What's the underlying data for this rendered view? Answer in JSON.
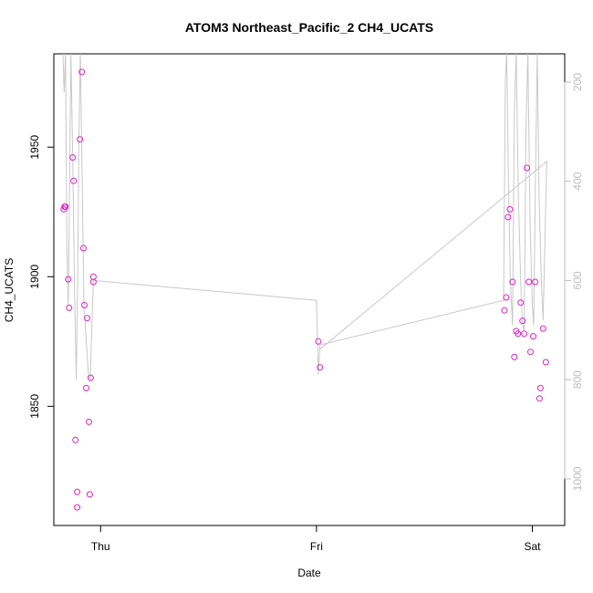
{
  "chart_data": {
    "type": "scatter",
    "title": "ATOM3 Northeast_Pacific_2 CH4_UCATS",
    "xlabel": "Date",
    "ylabel": "CH4_UCATS",
    "x_ticks": [
      {
        "x": 0,
        "label": "Thu"
      },
      {
        "x": 24,
        "label": "Fri"
      },
      {
        "x": 48,
        "label": "Sat"
      }
    ],
    "y_ticks": [
      1850,
      1900,
      1950
    ],
    "y2_ticks": [
      200,
      400,
      600,
      800,
      1000
    ],
    "xlim": [
      -5.2,
      51.6
    ],
    "ylim": [
      1804,
      1986
    ],
    "y2lim": [
      1094,
      143
    ],
    "colors": {
      "points": "#e020c8",
      "line": "#c8c8c8",
      "axis": "#000000",
      "right_axis": "#bdbdbd"
    },
    "points": [
      [
        -4.1,
        1926
      ],
      [
        -4.0,
        1927
      ],
      [
        -3.9,
        1927
      ],
      [
        -3.6,
        1899
      ],
      [
        -3.5,
        1888
      ],
      [
        -3.1,
        1946
      ],
      [
        -3.0,
        1937
      ],
      [
        -2.8,
        1837
      ],
      [
        -2.6,
        1817
      ],
      [
        -2.6,
        1811
      ],
      [
        -2.3,
        1953
      ],
      [
        -2.1,
        1979
      ],
      [
        -1.9,
        1911
      ],
      [
        -1.8,
        1889
      ],
      [
        -1.5,
        1884
      ],
      [
        -1.6,
        1857
      ],
      [
        -1.3,
        1844
      ],
      [
        -1.2,
        1816
      ],
      [
        -1.1,
        1861
      ],
      [
        -0.8,
        1900
      ],
      [
        -0.8,
        1898
      ],
      [
        24.2,
        1875
      ],
      [
        24.4,
        1865
      ],
      [
        44.9,
        1887
      ],
      [
        45.1,
        1892
      ],
      [
        45.3,
        1923
      ],
      [
        45.5,
        1926
      ],
      [
        45.8,
        1898
      ],
      [
        46.0,
        1869
      ],
      [
        46.2,
        1879
      ],
      [
        46.4,
        1878
      ],
      [
        46.7,
        1890
      ],
      [
        46.9,
        1883
      ],
      [
        47.1,
        1878
      ],
      [
        47.4,
        1942
      ],
      [
        47.6,
        1898
      ],
      [
        47.8,
        1871
      ],
      [
        48.1,
        1877
      ],
      [
        48.3,
        1898
      ],
      [
        48.8,
        1853
      ],
      [
        48.9,
        1857
      ],
      [
        49.2,
        1880
      ],
      [
        49.5,
        1867
      ]
    ],
    "altitude_trace": [
      [
        -4.2,
        140
      ],
      [
        -4.05,
        220
      ],
      [
        -3.9,
        140
      ],
      [
        -3.75,
        530
      ],
      [
        -3.6,
        650
      ],
      [
        -3.45,
        420
      ],
      [
        -3.3,
        140
      ],
      [
        -3.1,
        350
      ],
      [
        -2.9,
        620
      ],
      [
        -2.7,
        800
      ],
      [
        -2.55,
        600
      ],
      [
        -2.4,
        300
      ],
      [
        -2.25,
        140
      ],
      [
        -2.05,
        400
      ],
      [
        -1.85,
        650
      ],
      [
        -1.6,
        720
      ],
      [
        -1.35,
        790
      ],
      [
        -1.15,
        800
      ],
      [
        -0.9,
        650
      ],
      [
        -0.8,
        600
      ],
      [
        24.0,
        640
      ],
      [
        24.2,
        790
      ],
      [
        24.4,
        730
      ],
      [
        44.8,
        640
      ],
      [
        45.0,
        200
      ],
      [
        45.15,
        140
      ],
      [
        45.35,
        410
      ],
      [
        45.55,
        600
      ],
      [
        45.8,
        690
      ],
      [
        46.0,
        260
      ],
      [
        46.2,
        140
      ],
      [
        46.45,
        430
      ],
      [
        46.7,
        600
      ],
      [
        46.9,
        690
      ],
      [
        47.1,
        700
      ],
      [
        47.3,
        290
      ],
      [
        47.5,
        140
      ],
      [
        47.75,
        480
      ],
      [
        48.0,
        650
      ],
      [
        48.15,
        690
      ],
      [
        48.35,
        380
      ],
      [
        48.55,
        140
      ],
      [
        48.75,
        430
      ],
      [
        49.0,
        600
      ],
      [
        49.2,
        680
      ],
      [
        49.6,
        360
      ],
      [
        24.3,
        740
      ]
    ]
  }
}
